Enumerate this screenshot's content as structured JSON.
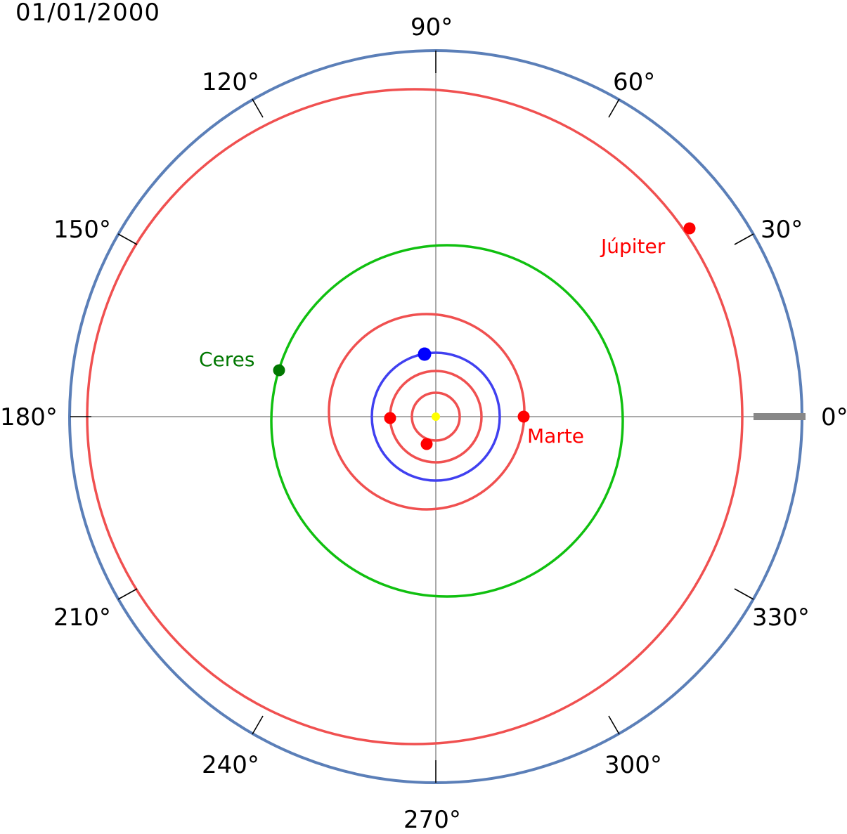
{
  "date": "01/01/2000",
  "angle_labels": [
    "0°",
    "30°",
    "60°",
    "90°",
    "120°",
    "150°",
    "180°",
    "210°",
    "240°",
    "270°",
    "300°",
    "330°"
  ],
  "colors": {
    "outer_ring": "#5b7fb8",
    "inner_planet_orbit": "#f05050",
    "earth_orbit": "#4040f0",
    "ceres_orbit": "#10c010",
    "planet_red": "#ff0000",
    "earth": "#0000ff",
    "ceres": "#007700",
    "sun": "#ffff00",
    "axis": "#555555",
    "zero_marker": "#888888"
  },
  "bodies": {
    "jupiter": {
      "label": "Júpiter",
      "color": "#ff0000"
    },
    "mars": {
      "label": "Marte",
      "color": "#ff0000"
    },
    "ceres": {
      "label": "Ceres",
      "color": "#007700"
    },
    "earth": {
      "color": "#0000ff"
    },
    "venus": {
      "color": "#ff0000"
    },
    "mercury": {
      "color": "#ff0000"
    },
    "sun": {
      "color": "#ffff00"
    }
  }
}
